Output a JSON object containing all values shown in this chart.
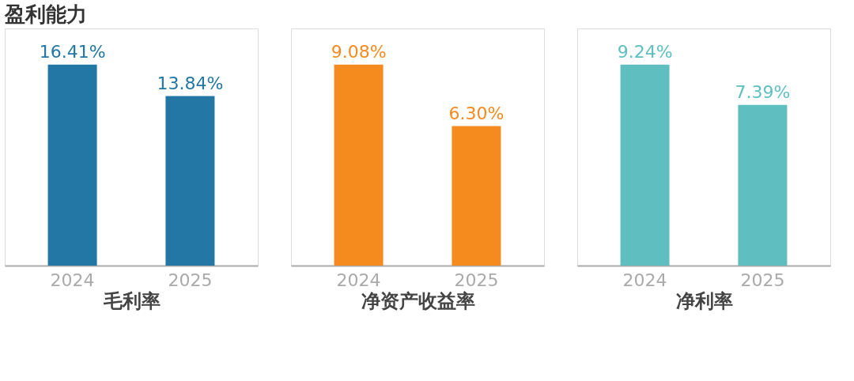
{
  "chart_data": [
    {
      "type": "bar",
      "title": "盈利能力",
      "xlabel": "毛利率",
      "categories": [
        "2024",
        "2025"
      ],
      "values": [
        16.41,
        13.84
      ],
      "color": "#2277a4",
      "value_labels": [
        "16.41%",
        "13.84%"
      ]
    },
    {
      "type": "bar",
      "xlabel": "净资产收益率",
      "categories": [
        "2024",
        "2025"
      ],
      "values": [
        9.08,
        6.3
      ],
      "color": "#f58a1f",
      "value_labels": [
        "9.08%",
        "6.30%"
      ]
    },
    {
      "type": "bar",
      "xlabel": "净利率",
      "categories": [
        "2024",
        "2025"
      ],
      "values": [
        9.24,
        7.39
      ],
      "color": "#5fbfc0",
      "value_labels": [
        "9.24%",
        "7.39%"
      ]
    }
  ]
}
